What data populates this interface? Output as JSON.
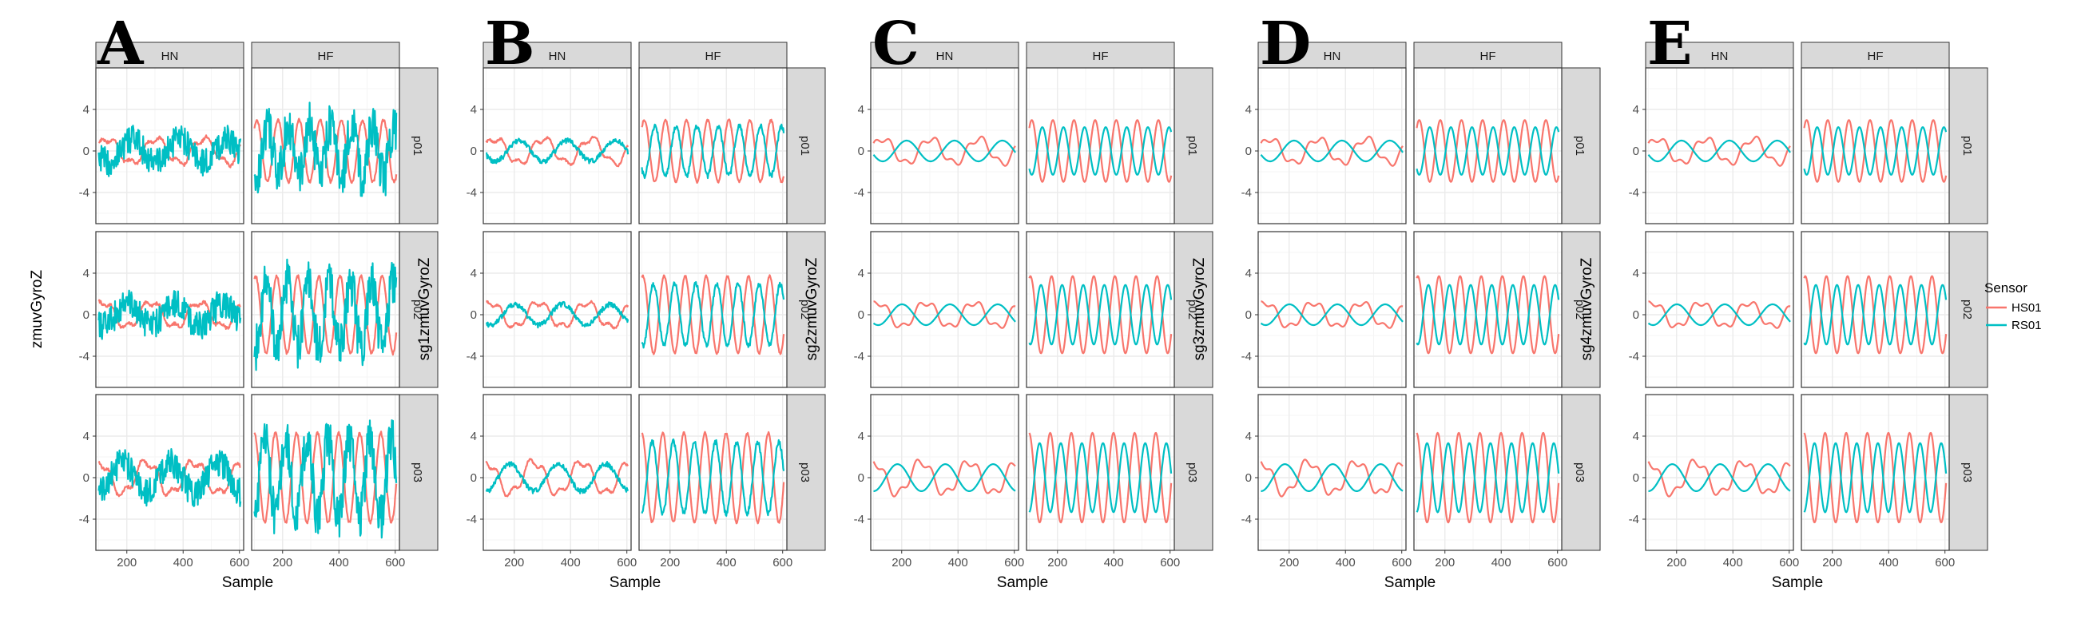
{
  "colors": {
    "HS01": "#F8766D",
    "RS01": "#00BFC4",
    "strip": "#d9d9d9",
    "grid_major": "#ebebeb",
    "grid_minor": "#f5f5f5",
    "border": "#333333"
  },
  "legend": {
    "title": "Sensor",
    "items": [
      "HS01",
      "RS01"
    ],
    "position": "right"
  },
  "chart_data": [
    {
      "type": "line",
      "panel": "A",
      "ylabel": "zmuvGyroZ",
      "xlabel": "Sample",
      "columns": [
        "HN",
        "HF"
      ],
      "rows": [
        "p01",
        "p02",
        "p03"
      ],
      "xlim": [
        90,
        615
      ],
      "ylim": [
        -7,
        8
      ],
      "xticks": [
        200,
        400,
        600
      ],
      "yticks": [
        -4,
        0,
        4
      ],
      "series": [
        {
          "name": "HS01",
          "hn_amplitude": 1.2,
          "hf_amplitude": 3.5
        },
        {
          "name": "RS01",
          "hn_amplitude": 1.1,
          "hf_amplitude": 3.0
        }
      ]
    },
    {
      "type": "line",
      "panel": "B",
      "ylabel": "sg1zmuvGyroZ",
      "xlabel": "Sample",
      "columns": [
        "HN",
        "HF"
      ],
      "rows": [
        "p01",
        "p02",
        "p03"
      ],
      "xlim": [
        90,
        615
      ],
      "ylim": [
        -7,
        8
      ],
      "xticks": [
        200,
        400,
        600
      ],
      "yticks": [
        -4,
        0,
        4
      ],
      "series": [
        {
          "name": "HS01",
          "hn_amplitude": 1.2,
          "hf_amplitude": 3.5
        },
        {
          "name": "RS01",
          "hn_amplitude": 1.0,
          "hf_amplitude": 2.8
        }
      ]
    },
    {
      "type": "line",
      "panel": "C",
      "ylabel": "sg2zmuvGyroZ",
      "xlabel": "Sample",
      "columns": [
        "HN",
        "HF"
      ],
      "rows": [
        "p01",
        "p02",
        "p03"
      ],
      "xlim": [
        90,
        615
      ],
      "ylim": [
        -7,
        8
      ],
      "xticks": [
        200,
        400,
        600
      ],
      "yticks": [
        -4,
        0,
        4
      ],
      "series": [
        {
          "name": "HS01",
          "hn_amplitude": 1.2,
          "hf_amplitude": 3.5
        },
        {
          "name": "RS01",
          "hn_amplitude": 1.0,
          "hf_amplitude": 2.7
        }
      ]
    },
    {
      "type": "line",
      "panel": "D",
      "ylabel": "sg3zmuvGyroZ",
      "xlabel": "Sample",
      "columns": [
        "HN",
        "HF"
      ],
      "rows": [
        "p01",
        "p02",
        "p03"
      ],
      "xlim": [
        90,
        615
      ],
      "ylim": [
        -7,
        8
      ],
      "xticks": [
        200,
        400,
        600
      ],
      "yticks": [
        -4,
        0,
        4
      ],
      "series": [
        {
          "name": "HS01",
          "hn_amplitude": 1.2,
          "hf_amplitude": 3.5
        },
        {
          "name": "RS01",
          "hn_amplitude": 1.0,
          "hf_amplitude": 2.7
        }
      ]
    },
    {
      "type": "line",
      "panel": "E",
      "ylabel": "sg4zmuvGyroZ",
      "xlabel": "Sample",
      "columns": [
        "HN",
        "HF"
      ],
      "rows": [
        "p01",
        "p02",
        "p03"
      ],
      "xlim": [
        90,
        615
      ],
      "ylim": [
        -7,
        8
      ],
      "xticks": [
        200,
        400,
        600
      ],
      "yticks": [
        -4,
        0,
        4
      ],
      "series": [
        {
          "name": "HS01",
          "hn_amplitude": 1.2,
          "hf_amplitude": 3.5
        },
        {
          "name": "RS01",
          "hn_amplitude": 1.0,
          "hf_amplitude": 2.7
        }
      ]
    }
  ]
}
